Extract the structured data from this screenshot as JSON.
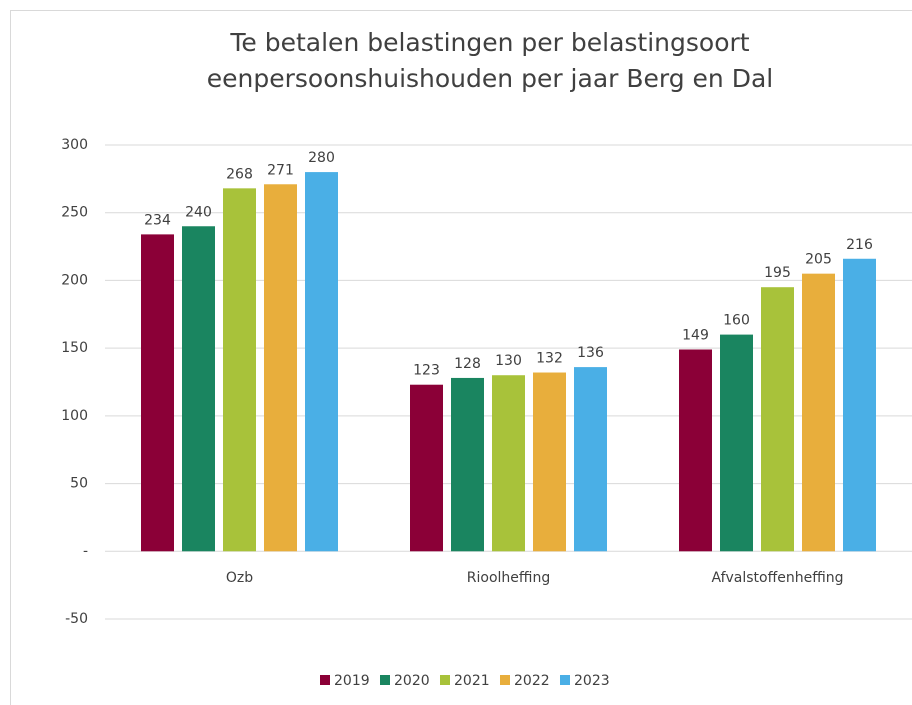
{
  "chart_data": {
    "type": "bar",
    "title": [
      "Te betalen belastingen per belastingsoort",
      "eenpersoonshuishouden per jaar Berg en Dal"
    ],
    "categories": [
      "Ozb",
      "Rioolheffing",
      "Afvalstoffenheffing"
    ],
    "series": [
      {
        "name": "2019",
        "color": "#8b0037",
        "values": [
          234,
          123,
          149
        ]
      },
      {
        "name": "2020",
        "color": "#1a8560",
        "values": [
          240,
          128,
          160
        ]
      },
      {
        "name": "2021",
        "color": "#a8c23a",
        "values": [
          268,
          130,
          195
        ]
      },
      {
        "name": "2022",
        "color": "#e8ae3c",
        "values": [
          271,
          132,
          205
        ]
      },
      {
        "name": "2023",
        "color": "#4aafe6",
        "values": [
          280,
          136,
          216
        ]
      }
    ],
    "ylim": [
      -50,
      300
    ],
    "yticks": [
      -50,
      {
        "value": 0,
        "label": "-"
      },
      50,
      100,
      150,
      200,
      250,
      300
    ],
    "grid": true,
    "legend": "bottom"
  }
}
